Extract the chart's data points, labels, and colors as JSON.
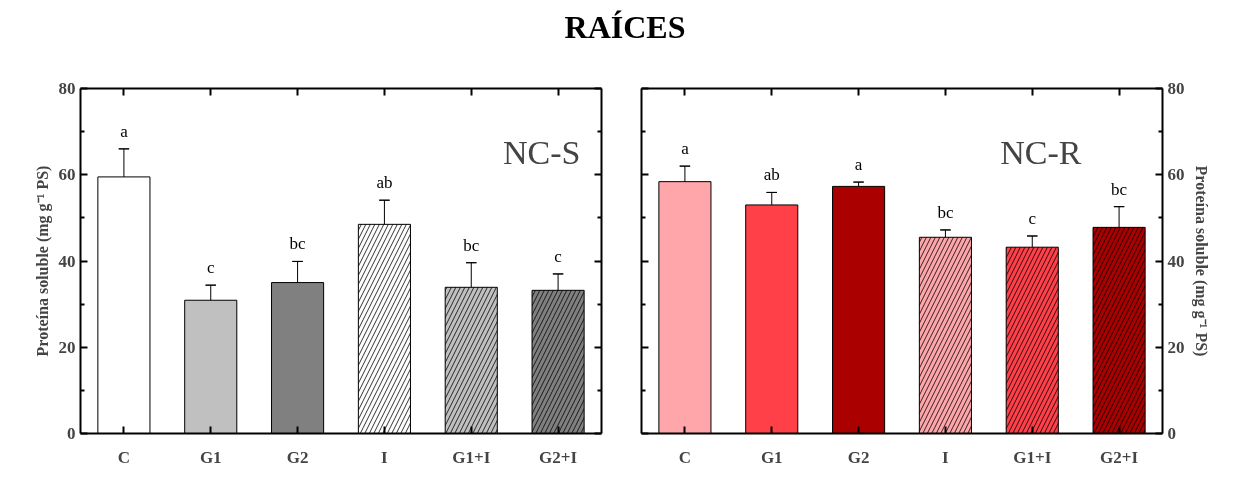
{
  "chart_data": [
    {
      "type": "bar",
      "title": "RAÍCES",
      "ylabel": "Proteína soluble (mg g⁻¹ PS)",
      "categories": [
        "C",
        "G1",
        "G2",
        "I",
        "G1+I",
        "G2+I"
      ],
      "values": [
        59.5,
        30.9,
        35.0,
        48.5,
        33.9,
        33.2
      ],
      "colors": [
        "#ffffff",
        "#c0c0c0",
        "#808080",
        "#ffffff",
        "#c0c0c0",
        "#808080"
      ],
      "errors": [
        [
          59.5,
          66.0
        ],
        [
          30.9,
          34.4
        ],
        [
          35.0,
          39.9
        ],
        [
          48.5,
          54.1
        ],
        [
          33.9,
          39.6
        ],
        [
          33.2,
          37.0
        ]
      ],
      "ylim": [
        0,
        80
      ],
      "yticks": [
        0,
        20,
        40,
        60,
        80
      ],
      "grid": false,
      "annotations": [
        "NC-S",
        {
          "text": "a",
          "x": "C",
          "y": 66.0
        },
        {
          "text": "c",
          "x": "G1",
          "y": 34.4
        },
        {
          "text": "bc",
          "x": "G2",
          "y": 39.9
        },
        {
          "text": "ab",
          "x": "I",
          "y": 54.1
        },
        {
          "text": "bc",
          "x": "G1+I",
          "y": 39.6
        },
        {
          "text": "c",
          "x": "G2+I",
          "y": 37.0
        }
      ]
    },
    {
      "type": "bar",
      "ylabel": "Proteína soluble (mg g⁻¹ PS)",
      "categories": [
        "C",
        "G1",
        "G2",
        "I",
        "G1+I",
        "G2+I"
      ],
      "values": [
        58.4,
        53.0,
        57.3,
        45.5,
        43.2,
        47.8
      ],
      "colors": [
        "#ffa6aa",
        "#ff4048",
        "#aa0000",
        "#ffa6aa",
        "#ff4048",
        "#aa0000"
      ],
      "errors": [
        [
          58.4,
          62.0
        ],
        [
          53.0,
          55.9
        ],
        [
          57.3,
          58.3
        ],
        [
          45.5,
          47.2
        ],
        [
          43.2,
          45.8
        ],
        [
          47.8,
          52.6
        ]
      ],
      "ylim": [
        0,
        80
      ],
      "yticks": [
        0,
        20,
        40,
        60,
        80
      ],
      "grid": false,
      "annotations": [
        "NC-R",
        {
          "text": "a",
          "x": "C",
          "y": 62.0
        },
        {
          "text": "ab",
          "x": "G1",
          "y": 55.9
        },
        {
          "text": "a",
          "x": "G2",
          "y": 58.3
        },
        {
          "text": "bc",
          "x": "I",
          "y": 47.2
        },
        {
          "text": "c",
          "x": "G1+I",
          "y": 45.8
        },
        {
          "text": "bc",
          "x": "G2+I",
          "y": 52.6
        }
      ]
    }
  ]
}
